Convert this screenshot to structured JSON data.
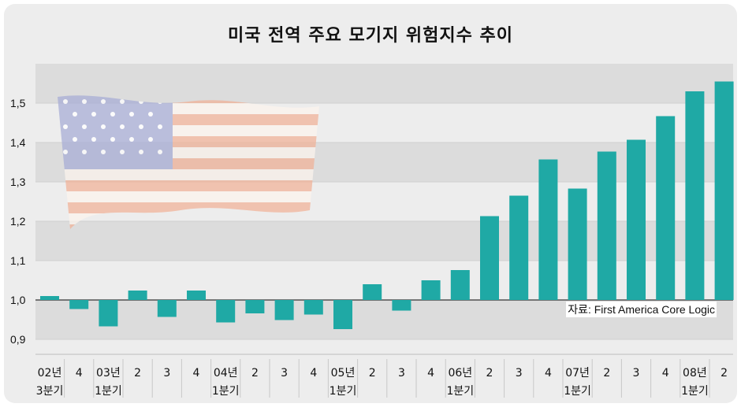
{
  "title": "미국 전역 주요 모기지 위험지수 추이",
  "source": "자료: First America Core Logic",
  "colors": {
    "bar": "#1fa9a5",
    "band": "#dcdcdc",
    "background": "#ededed"
  },
  "flag_icon": "us-flag-icon",
  "chart_data": {
    "type": "bar",
    "baseline": 1.0,
    "ylim": [
      0.88,
      1.6
    ],
    "yticks": [
      "1,5",
      "1,4",
      "1,3",
      "1,2",
      "1,1",
      "1,0",
      "0,9"
    ],
    "ytick_values": [
      1.5,
      1.4,
      1.3,
      1.2,
      1.1,
      1.0,
      0.9
    ],
    "categories": [
      [
        "02년",
        "3분기"
      ],
      [
        "4",
        ""
      ],
      [
        "03년",
        "1분기"
      ],
      [
        "2",
        ""
      ],
      [
        "3",
        ""
      ],
      [
        "4",
        ""
      ],
      [
        "04년",
        "1분기"
      ],
      [
        "2",
        ""
      ],
      [
        "3",
        ""
      ],
      [
        "4",
        ""
      ],
      [
        "05년",
        "1분기"
      ],
      [
        "2",
        ""
      ],
      [
        "3",
        ""
      ],
      [
        "4",
        ""
      ],
      [
        "06년",
        "1분기"
      ],
      [
        "2",
        ""
      ],
      [
        "3",
        ""
      ],
      [
        "4",
        ""
      ],
      [
        "07년",
        "1분기"
      ],
      [
        "2",
        ""
      ],
      [
        "3",
        ""
      ],
      [
        "4",
        ""
      ],
      [
        "08년",
        "1분기"
      ],
      [
        "2",
        ""
      ]
    ],
    "values": [
      1.01,
      0.977,
      0.933,
      1.024,
      0.957,
      1.024,
      0.943,
      0.966,
      0.949,
      0.963,
      0.926,
      1.04,
      0.973,
      1.05,
      1.076,
      1.213,
      1.265,
      1.357,
      1.283,
      1.377,
      1.407,
      1.467,
      1.53,
      1.555
    ],
    "xlabel": "",
    "ylabel": ""
  }
}
